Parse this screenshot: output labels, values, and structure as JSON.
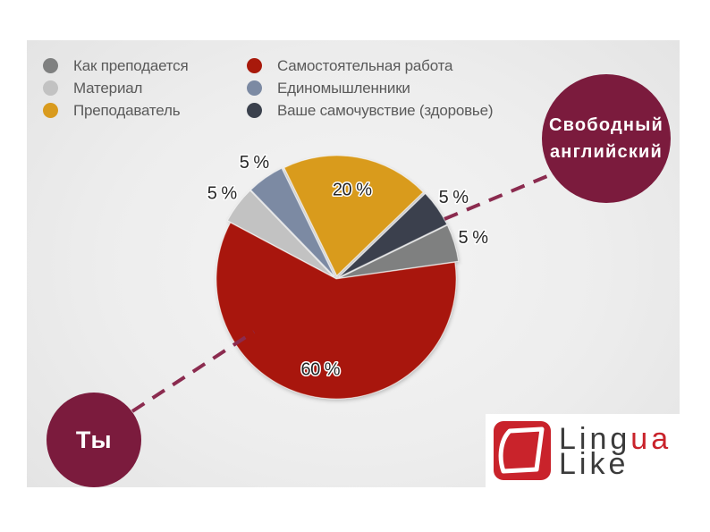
{
  "chart_data": {
    "type": "pie",
    "categories": [
      "Как преподается",
      "Самостоятельная работа",
      "Материал",
      "Единомышленники",
      "Преподаватель",
      "Ваше самочувствие (здоровье)"
    ],
    "values": [
      5,
      60,
      5,
      5,
      20,
      5
    ],
    "data_labels": [
      "5 %",
      "60 %",
      "5 %",
      "5 %",
      "20 %",
      "5 %"
    ],
    "colors": [
      "#7f8080",
      "#a8190b",
      "#c2c2c2",
      "#7c8aa3",
      "#d99b1e",
      "#3b414d"
    ],
    "legend_position": "top"
  },
  "callouts": {
    "free_english": {
      "line1": "Свободный",
      "line2": "английский"
    },
    "you": "Ты"
  },
  "logo": {
    "line1_main": "Ling",
    "line1_accent": "ua",
    "line2": "Like"
  },
  "colors": {
    "callout": "#7b1b3d",
    "connector": "#8b2b4f",
    "logo_accent": "#c9232b",
    "logo_text": "#3b3b3b"
  }
}
